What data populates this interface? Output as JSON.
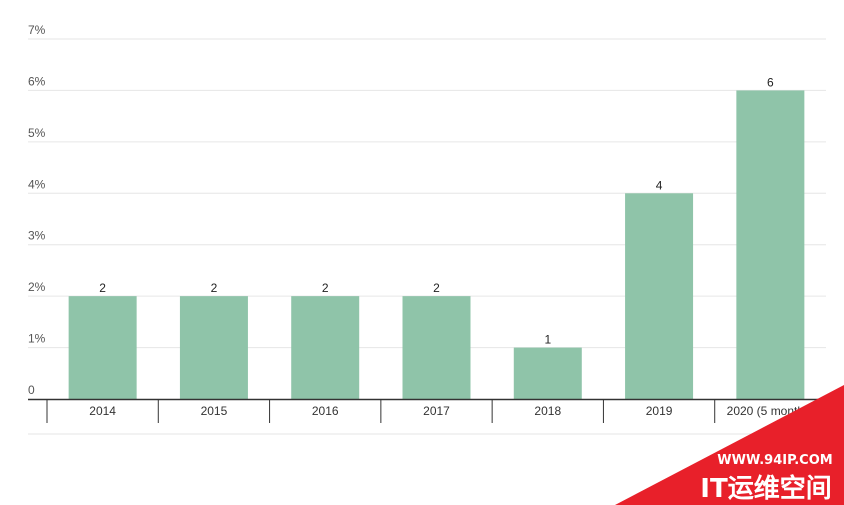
{
  "chart_data": {
    "type": "bar",
    "title": "",
    "xlabel": "",
    "ylabel": "",
    "categories": [
      "2014",
      "2015",
      "2016",
      "2017",
      "2018",
      "2019",
      "2020 (5 months)"
    ],
    "values": [
      2,
      2,
      2,
      2,
      1,
      4,
      6
    ],
    "data_labels": [
      "2",
      "2",
      "2",
      "2",
      "1",
      "4",
      "6"
    ],
    "y_ticks": [
      "0",
      "1%",
      "2%",
      "3%",
      "4%",
      "5%",
      "6%",
      "7%"
    ],
    "ylim": [
      0,
      7
    ],
    "grid": true,
    "legend": "none",
    "bar_color": "#8fc4a9"
  },
  "watermark": {
    "url": "WWW.94IP.COM",
    "name": "IT运维空间",
    "color": "#e8202a"
  }
}
